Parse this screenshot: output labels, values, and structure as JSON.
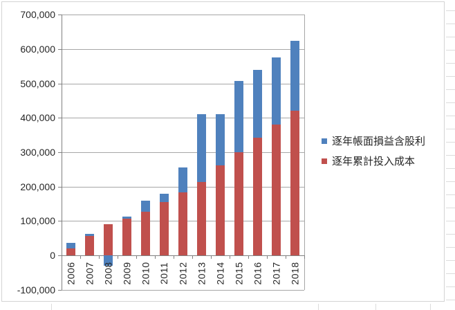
{
  "chart_data": {
    "type": "bar",
    "stacked": true,
    "title": "",
    "xlabel": "",
    "ylabel": "",
    "categories": [
      "2006",
      "2007",
      "2008",
      "2009",
      "2010",
      "2011",
      "2012",
      "2013",
      "2014",
      "2015",
      "2016",
      "2017",
      "2018"
    ],
    "series": [
      {
        "name": "逐年帳面損益含股利",
        "color": "#4F81BD",
        "values": [
          17000,
          7000,
          -30000,
          6000,
          31000,
          26000,
          72000,
          197000,
          149000,
          207000,
          198000,
          196000,
          202000
        ]
      },
      {
        "name": "逐年累計投入成本",
        "color": "#C0504D",
        "values": [
          20000,
          56000,
          90000,
          107000,
          127000,
          154000,
          183000,
          213000,
          261000,
          300000,
          342000,
          380000,
          421000
        ]
      }
    ],
    "y_axis": {
      "min": -100000,
      "max": 700000,
      "step": 100000,
      "tick_labels": [
        "-100,000",
        "0",
        "100,000",
        "200,000",
        "300,000",
        "400,000",
        "500,000",
        "600,000",
        "700,000"
      ]
    },
    "grid": true,
    "legend_position": "right",
    "gridline_color": "#A6A6A6",
    "axis_color": "#808080",
    "text_color": "#262626"
  }
}
